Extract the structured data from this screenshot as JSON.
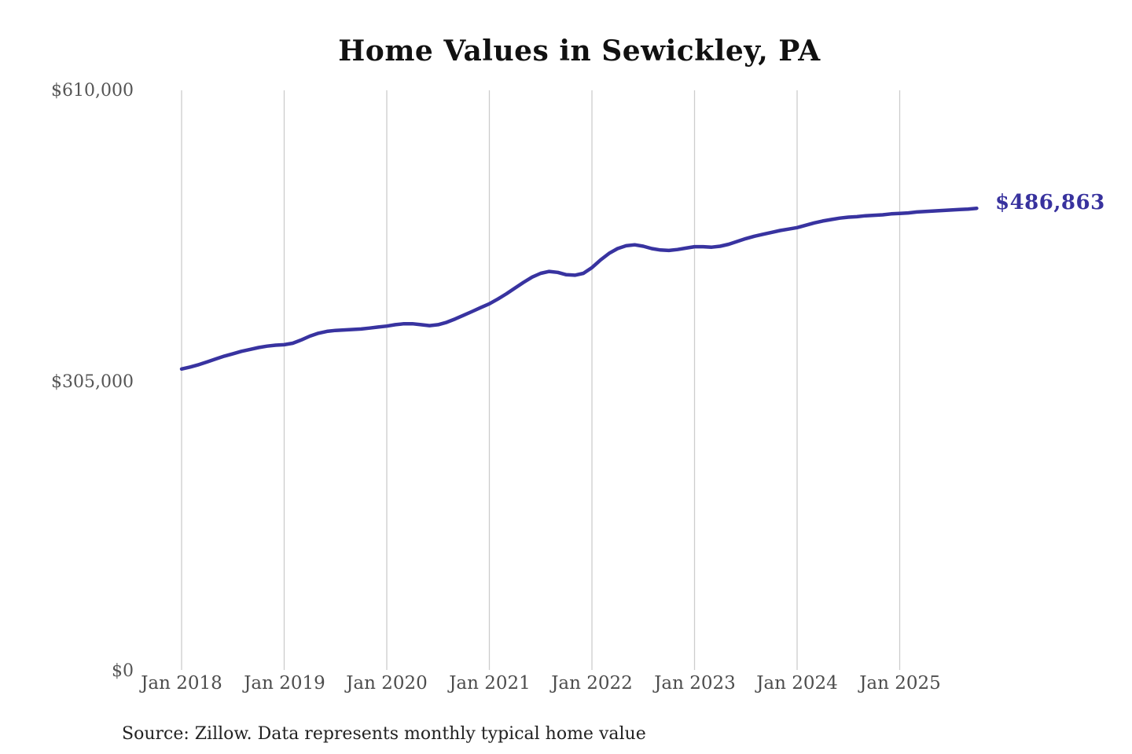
{
  "page": {
    "title": "Home Values in Sewickley, PA",
    "source_note": "Source: Zillow. Data represents monthly typical home value"
  },
  "chart_data": {
    "type": "line",
    "title": "Home Values in Sewickley, PA",
    "series_name": "Monthly typical home value",
    "end_label": "$486,863",
    "end_value": 486863,
    "ylim": [
      0,
      610000
    ],
    "grid": "vertical-only",
    "legend": "none",
    "yticks": [
      {
        "value": 610000,
        "label": "$610,000"
      },
      {
        "value": 305000,
        "label": "$305,000"
      },
      {
        "value": 0,
        "label": "$0"
      }
    ],
    "xticks": [
      {
        "month_index": 0,
        "label": "Jan 2018"
      },
      {
        "month_index": 12,
        "label": "Jan 2019"
      },
      {
        "month_index": 24,
        "label": "Jan 2020"
      },
      {
        "month_index": 36,
        "label": "Jan 2021"
      },
      {
        "month_index": 48,
        "label": "Jan 2022"
      },
      {
        "month_index": 60,
        "label": "Jan 2023"
      },
      {
        "month_index": 72,
        "label": "Jan 2024"
      },
      {
        "month_index": 84,
        "label": "Jan 2025"
      }
    ],
    "x": [
      "2018-01",
      "2018-02",
      "2018-03",
      "2018-04",
      "2018-05",
      "2018-06",
      "2018-07",
      "2018-08",
      "2018-09",
      "2018-10",
      "2018-11",
      "2018-12",
      "2019-01",
      "2019-02",
      "2019-03",
      "2019-04",
      "2019-05",
      "2019-06",
      "2019-07",
      "2019-08",
      "2019-09",
      "2019-10",
      "2019-11",
      "2019-12",
      "2020-01",
      "2020-02",
      "2020-03",
      "2020-04",
      "2020-05",
      "2020-06",
      "2020-07",
      "2020-08",
      "2020-09",
      "2020-10",
      "2020-11",
      "2020-12",
      "2021-01",
      "2021-02",
      "2021-03",
      "2021-04",
      "2021-05",
      "2021-06",
      "2021-07",
      "2021-08",
      "2021-09",
      "2021-10",
      "2021-11",
      "2021-12",
      "2022-01",
      "2022-02",
      "2022-03",
      "2022-04",
      "2022-05",
      "2022-06",
      "2022-07",
      "2022-08",
      "2022-09",
      "2022-10",
      "2022-11",
      "2022-12",
      "2023-01",
      "2023-02",
      "2023-03",
      "2023-04",
      "2023-05",
      "2023-06",
      "2023-07",
      "2023-08",
      "2023-09",
      "2023-10",
      "2023-11",
      "2023-12",
      "2024-01",
      "2024-02",
      "2024-03",
      "2024-04",
      "2024-05",
      "2024-06",
      "2024-07",
      "2024-08",
      "2024-09",
      "2024-10",
      "2024-11",
      "2024-12",
      "2025-01",
      "2025-02",
      "2025-03",
      "2025-04",
      "2025-05",
      "2025-06",
      "2025-07",
      "2025-08",
      "2025-09",
      "2025-10"
    ],
    "values": [
      318000,
      320000,
      322500,
      325500,
      328500,
      331500,
      334000,
      336500,
      338500,
      340500,
      342000,
      343000,
      343500,
      345000,
      348500,
      352500,
      355500,
      357500,
      358500,
      359000,
      359500,
      360000,
      361000,
      362000,
      363000,
      364500,
      365500,
      365500,
      364500,
      363500,
      364500,
      367000,
      370500,
      374500,
      378500,
      382500,
      386500,
      391500,
      397000,
      403000,
      409000,
      414500,
      418500,
      420500,
      419500,
      417000,
      416500,
      418500,
      424500,
      432500,
      439500,
      444500,
      447500,
      448500,
      447000,
      444500,
      443000,
      442500,
      443500,
      445000,
      446500,
      446500,
      446000,
      447000,
      449000,
      452000,
      455000,
      457500,
      459500,
      461500,
      463500,
      465000,
      466500,
      469000,
      471500,
      473500,
      475000,
      476500,
      477500,
      478000,
      479000,
      479500,
      480000,
      481000,
      481500,
      482000,
      483000,
      483500,
      484000,
      484500,
      485000,
      485500,
      486000,
      486863
    ],
    "colors": {
      "line": "#3833a0",
      "end_label": "#38329e",
      "grid": "#cccccc",
      "axis_text": "#4d4d4d",
      "title_text": "#111111",
      "source_text": "#222222"
    }
  }
}
